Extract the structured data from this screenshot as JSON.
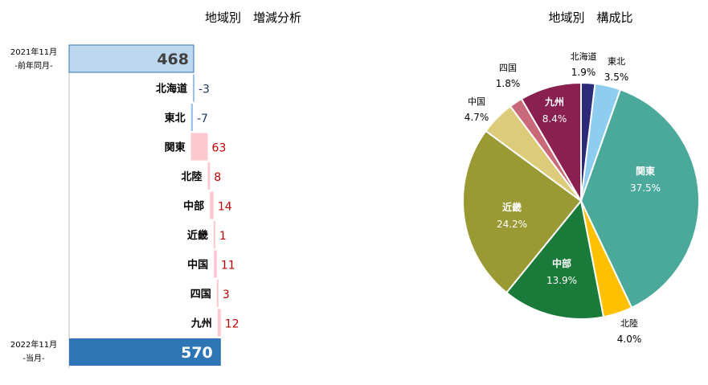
{
  "chart_data": [
    {
      "type": "bar",
      "subtype": "waterfall",
      "title": "地域別　増減分析",
      "start": {
        "label_line1": "2021年11月",
        "label_line2": "-前年同月-",
        "value": 468
      },
      "end": {
        "label_line1": "2022年11月",
        "label_line2": "-当月-",
        "value": 570
      },
      "categories": [
        "北海道",
        "東北",
        "関東",
        "北陸",
        "中部",
        "近畿",
        "中国",
        "四国",
        "九州"
      ],
      "values": [
        -3,
        -7,
        63,
        8,
        14,
        1,
        11,
        3,
        12
      ],
      "value_labels": [
        "-3",
        "-7",
        "63",
        "8",
        "14",
        "1",
        "11",
        "3",
        "12"
      ],
      "colors": {
        "start_bar": "#bdd7ee",
        "start_border": "#2e75b6",
        "end_bar": "#2e75b6",
        "decrease": "#9dc3e6",
        "increase": "#ffc7ce",
        "decrease_label": "#1f3864",
        "increase_label": "#c00000",
        "category_label": "#000000",
        "total_label_start": "#404040",
        "total_label_end": "#ffffff"
      }
    },
    {
      "type": "pie",
      "title": "地域別　構成比",
      "start_angle_deg": 0,
      "slices": [
        {
          "name": "北海道",
          "value": 1.9,
          "label": "1.9%",
          "color": "#2e2a7a",
          "label_inside": false
        },
        {
          "name": "東北",
          "value": 3.5,
          "label": "3.5%",
          "color": "#8ecdf0",
          "label_inside": false
        },
        {
          "name": "関東",
          "value": 37.5,
          "label": "37.5%",
          "color": "#4aa99a",
          "label_inside": true
        },
        {
          "name": "北陸",
          "value": 4.0,
          "label": "4.0%",
          "color": "#ffc000",
          "label_inside": false
        },
        {
          "name": "中部",
          "value": 13.9,
          "label": "13.9%",
          "color": "#1a7a3a",
          "label_inside": true
        },
        {
          "name": "近畿",
          "value": 24.2,
          "label": "24.2%",
          "color": "#9a9a35",
          "label_inside": true
        },
        {
          "name": "中国",
          "value": 4.7,
          "label": "4.7%",
          "color": "#dccb78",
          "label_inside": false
        },
        {
          "name": "四国",
          "value": 1.8,
          "label": "1.8%",
          "color": "#c96a7a",
          "label_inside": false
        },
        {
          "name": "九州",
          "value": 8.4,
          "label": "8.4%",
          "color": "#8a2050",
          "label_inside": true
        }
      ]
    }
  ]
}
